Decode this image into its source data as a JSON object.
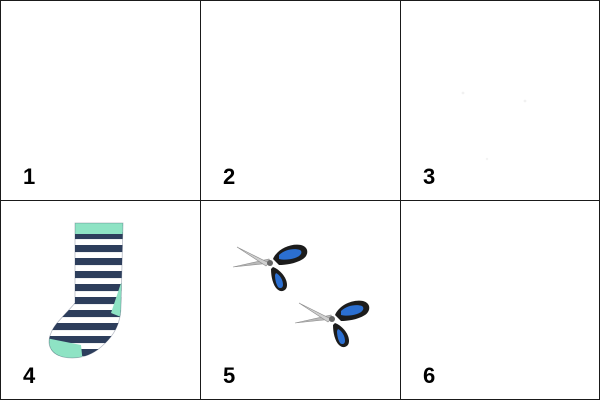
{
  "cells": [
    {
      "number": "1",
      "item": ""
    },
    {
      "number": "2",
      "item": ""
    },
    {
      "number": "3",
      "item": ""
    },
    {
      "number": "4",
      "item": "sock-icon"
    },
    {
      "number": "5",
      "item": "scissors-icon"
    },
    {
      "number": "6",
      "item": ""
    }
  ],
  "colors": {
    "grid_line": "#1a1a1a",
    "label": "#000000",
    "sock_stripe_dark": "#2d3e5c",
    "sock_stripe_light": "#ffffff",
    "sock_cuff": "#8ee3c4",
    "scissors_handle": "#2b6fd1",
    "scissors_handle_outline": "#1c1c1c",
    "scissors_blade": "#b9b9b9"
  }
}
